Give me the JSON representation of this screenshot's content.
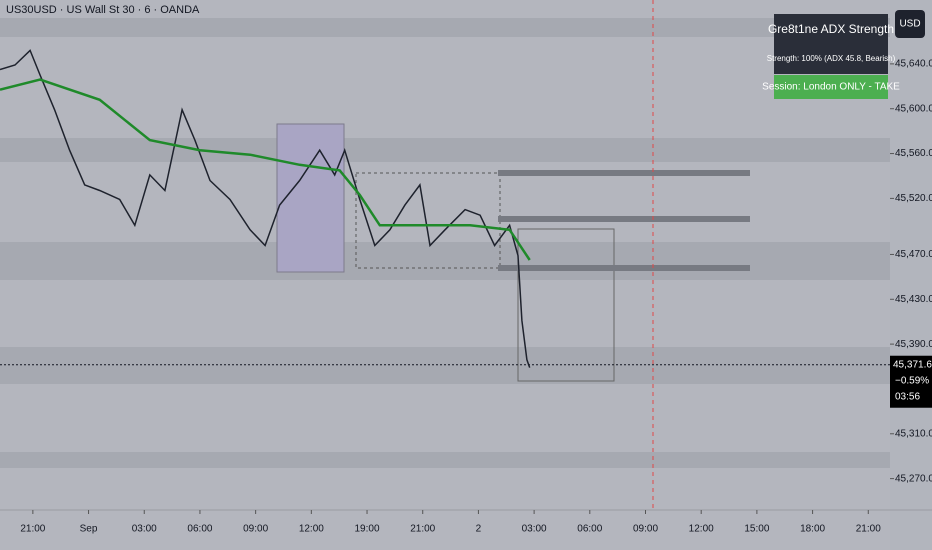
{
  "chart_data": {
    "type": "line",
    "title": "US30USD · US Wall St 30 · 6 · OANDA",
    "currency": "USD",
    "panel": {
      "title": "Gre8t1ne ADX Strength",
      "strength": "Strength: 100%  (ADX 45.8, Bearish)",
      "session": "Session: London ONLY  -  TAKE"
    },
    "last_price": {
      "value": 45371.6,
      "label": "45,371.6"
    },
    "change": "−0.59%",
    "countdown": "03:56",
    "xlim": [
      -0.59,
      15.39
    ],
    "xticks": [
      {
        "value": 0,
        "label": "21:00"
      },
      {
        "value": 1,
        "label": "Sep"
      },
      {
        "value": 2,
        "label": "03:00"
      },
      {
        "value": 3,
        "label": "06:00"
      },
      {
        "value": 4,
        "label": "09:00"
      },
      {
        "value": 5,
        "label": "12:00"
      },
      {
        "value": 6,
        "label": "19:00"
      },
      {
        "value": 7,
        "label": "21:00"
      },
      {
        "value": 8,
        "label": "2"
      },
      {
        "value": 9,
        "label": "03:00"
      },
      {
        "value": 10,
        "label": "06:00"
      },
      {
        "value": 11,
        "label": "09:00"
      },
      {
        "value": 12,
        "label": "12:00"
      },
      {
        "value": 13,
        "label": "15:00"
      },
      {
        "value": 14,
        "label": "18:00"
      },
      {
        "value": 15,
        "label": "21:00"
      }
    ],
    "ylim": [
      45242,
      45697
    ],
    "yticks": [
      {
        "value": 45640,
        "label": "45,640.0"
      },
      {
        "value": 45600,
        "label": "45,600.0"
      },
      {
        "value": 45560,
        "label": "45,560.0"
      },
      {
        "value": 45520,
        "label": "45,520.0"
      },
      {
        "value": 45470,
        "label": "45,470.0"
      },
      {
        "value": 45430,
        "label": "45,430.0"
      },
      {
        "value": 45390,
        "label": "45,390.0"
      },
      {
        "value": 45310,
        "label": "45,310.0"
      },
      {
        "value": 45270,
        "label": "45,270.0"
      }
    ],
    "series": [
      {
        "name": "Price",
        "color": "#1e222d",
        "x": [
          -0.59,
          -0.32,
          -0.05,
          0.13,
          0.39,
          0.66,
          0.93,
          1.2,
          1.56,
          1.83,
          2.1,
          2.37,
          2.68,
          2.91,
          3.18,
          3.54,
          3.9,
          4.17,
          4.43,
          4.79,
          5.15,
          5.42,
          5.6,
          5.87,
          6.14,
          6.41,
          6.68,
          6.95,
          7.13,
          7.4,
          7.76,
          8.03,
          8.29,
          8.56,
          8.71,
          8.78,
          8.87,
          8.92
        ],
        "values": [
          45635,
          45639,
          45652,
          45630,
          45599,
          45563,
          45532,
          45527,
          45519,
          45496,
          45541,
          45527,
          45599,
          45572,
          45536,
          45519,
          45492,
          45478,
          45514,
          45536,
          45563,
          45541,
          45563,
          45519,
          45478,
          45492,
          45514,
          45532,
          45478,
          45492,
          45510,
          45505,
          45478,
          45496,
          45469,
          45411,
          45376,
          45369
        ]
      },
      {
        "name": "EMA",
        "color": "#1f8a2a",
        "x": [
          -0.59,
          0.13,
          1.2,
          2.1,
          3.0,
          3.9,
          4.79,
          5.51,
          5.87,
          6.23,
          6.95,
          7.85,
          8.56,
          8.92
        ],
        "values": [
          45617,
          45626,
          45608,
          45572,
          45563,
          45559,
          45550,
          45545,
          45523,
          45496,
          45496,
          45496,
          45492,
          45465
        ]
      }
    ]
  }
}
